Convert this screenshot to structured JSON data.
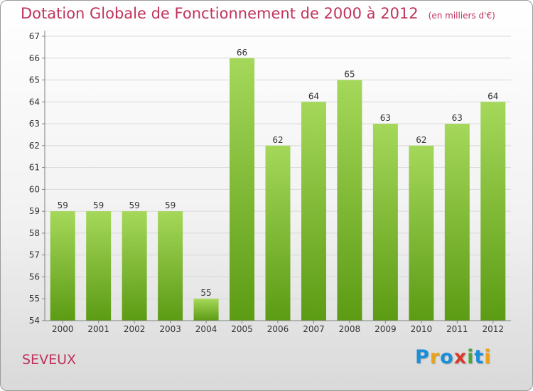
{
  "title": "Dotation Globale de Fonctionnement de 2000 à 2012",
  "unit_note": "(en milliers d'€)",
  "commune": "SEVEUX",
  "brand": {
    "name": "Proxiti",
    "letters": [
      {
        "char": "P",
        "color": "#1a8fd8"
      },
      {
        "char": "r",
        "color": "#e8a21b"
      },
      {
        "char": "o",
        "color": "#1a8fd8"
      },
      {
        "char": "x",
        "color": "#d93a2b"
      },
      {
        "char": "i",
        "color": "#4aa83a"
      },
      {
        "char": "t",
        "color": "#1a8fd8"
      },
      {
        "char": "i",
        "color": "#e8a21b"
      }
    ]
  },
  "colors": {
    "accent": "#c0335b",
    "bar_top": "#a5d85a",
    "bar_bottom": "#5c9b14",
    "grid": "#d8d8d8",
    "axis": "#808080"
  },
  "chart_data": {
    "type": "bar",
    "title": "Dotation Globale de Fonctionnement de 2000 à 2012",
    "xlabel": "",
    "ylabel": "",
    "categories": [
      "2000",
      "2001",
      "2002",
      "2003",
      "2004",
      "2005",
      "2006",
      "2007",
      "2008",
      "2009",
      "2010",
      "2011",
      "2012"
    ],
    "values": [
      59,
      59,
      59,
      59,
      55,
      66,
      62,
      64,
      65,
      63,
      62,
      63,
      64
    ],
    "ylim": [
      54,
      67
    ],
    "yticks": [
      54,
      55,
      56,
      57,
      58,
      59,
      60,
      61,
      62,
      63,
      64,
      65,
      66,
      67
    ],
    "grid": true
  }
}
